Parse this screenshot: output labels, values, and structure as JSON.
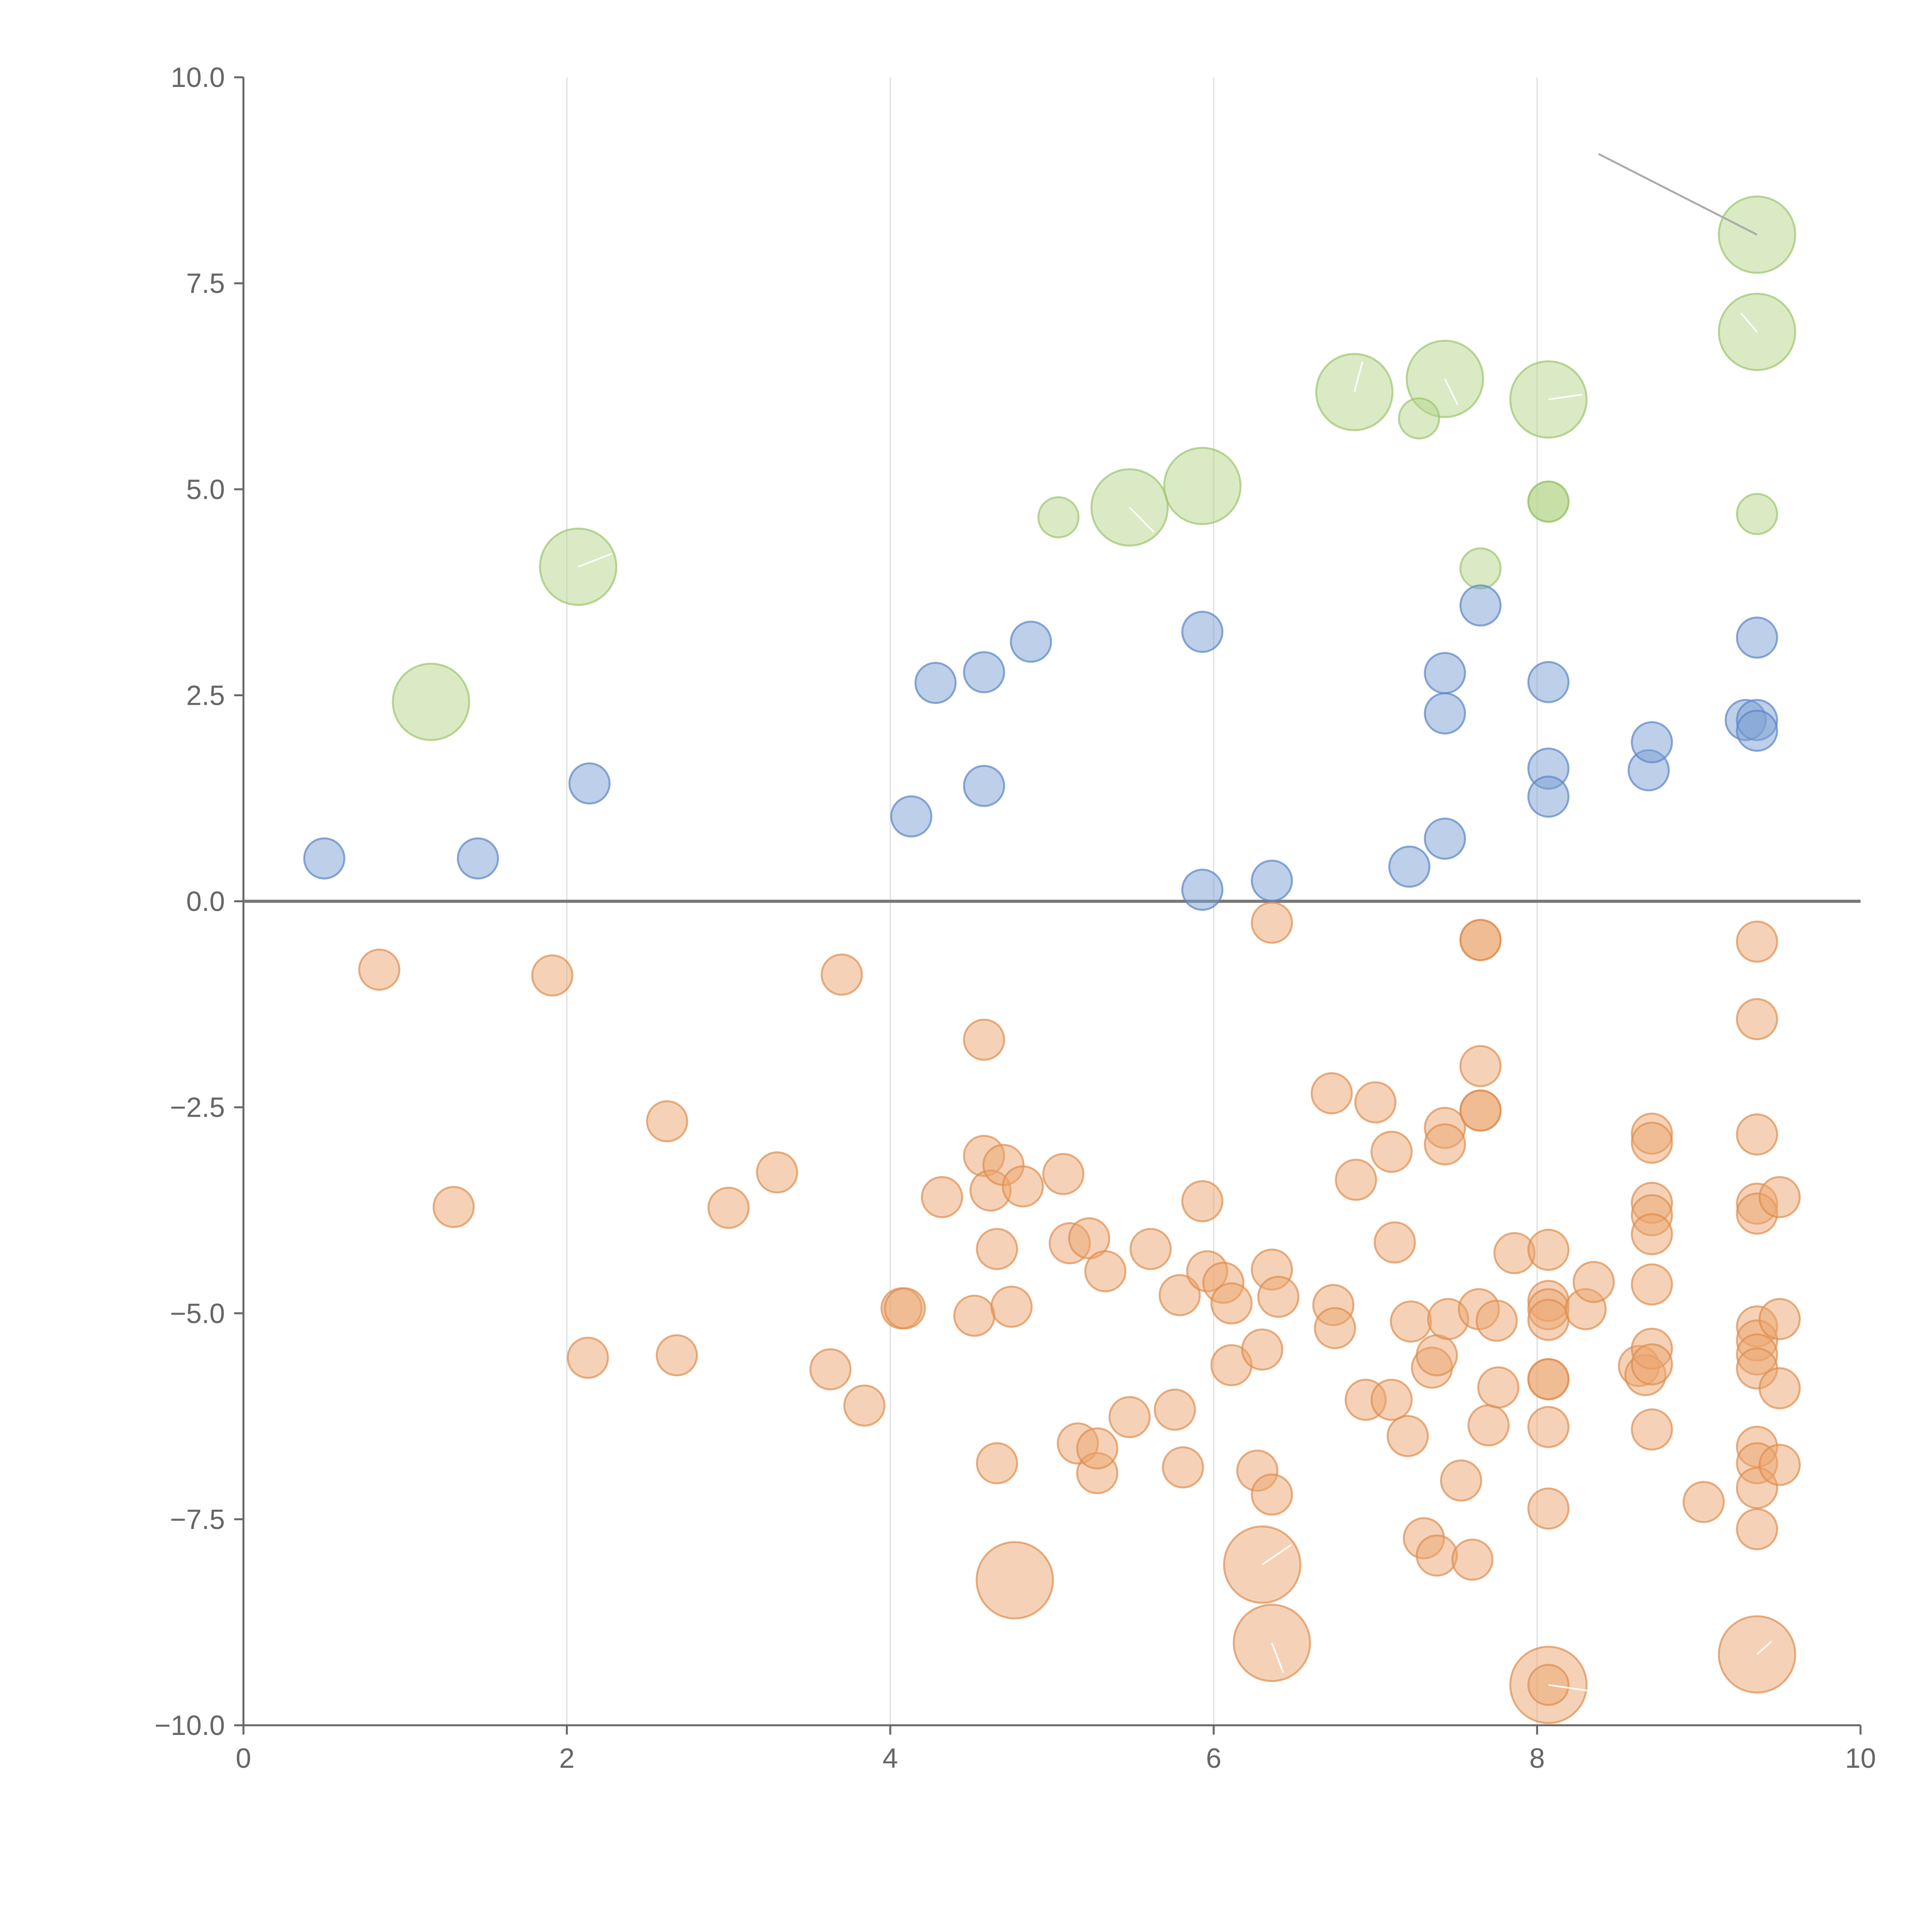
{
  "chart_data": {
    "type": "scatter",
    "title": "",
    "xlabel": "",
    "ylabel": "",
    "xlim": [
      0,
      10
    ],
    "ylim": [
      -10,
      10
    ],
    "x_ticks": [
      "0",
      "2",
      "4",
      "6",
      "8",
      "10"
    ],
    "x_tick_values": [
      0,
      2,
      4,
      6,
      8,
      10
    ],
    "y_ticks": [
      "10.0",
      "7.5",
      "5.0",
      "2.5",
      "0.0",
      "−2.5",
      "−5.0",
      "−7.5",
      "−10.0"
    ],
    "y_tick_values": [
      10,
      7.5,
      5,
      2.5,
      0,
      -2.5,
      -5,
      -7.5,
      -10
    ],
    "grid": "vertical",
    "reference_line_y": 0,
    "size_note": "size = relative bubble size (small=1)",
    "series": [
      {
        "name": "green",
        "color": "#b5d68c",
        "stroke": "#9cc46c",
        "points": [
          [
            1.16,
            2.42,
            1.9
          ],
          [
            2.07,
            4.06,
            1.9
          ],
          [
            5.04,
            4.66,
            1
          ],
          [
            5.48,
            4.78,
            1.9
          ],
          [
            5.93,
            5.04,
            1.9
          ],
          [
            6.87,
            6.18,
            1.9
          ],
          [
            7.27,
            5.86,
            1
          ],
          [
            7.43,
            6.34,
            1.9
          ],
          [
            7.65,
            4.04,
            1
          ],
          [
            8.07,
            6.09,
            1.9
          ],
          [
            8.07,
            4.85,
            1
          ],
          [
            8.07,
            4.85,
            1
          ],
          [
            9.36,
            8.09,
            1.9
          ],
          [
            9.36,
            6.91,
            1.9
          ],
          [
            9.36,
            4.7,
            1
          ]
        ]
      },
      {
        "name": "blue",
        "color": "#7b9fd4",
        "stroke": "#5a84c4",
        "points": [
          [
            0.5,
            0.52,
            1
          ],
          [
            1.45,
            0.52,
            1
          ],
          [
            2.14,
            1.43,
            1
          ],
          [
            4.13,
            1.03,
            1
          ],
          [
            4.28,
            2.65,
            1
          ],
          [
            4.58,
            2.78,
            1
          ],
          [
            4.58,
            1.4,
            1
          ],
          [
            4.87,
            3.15,
            1
          ],
          [
            5.93,
            3.27,
            1
          ],
          [
            5.93,
            0.14,
            1
          ],
          [
            6.36,
            0.25,
            1
          ],
          [
            7.21,
            0.42,
            1
          ],
          [
            7.43,
            2.77,
            1
          ],
          [
            7.43,
            2.28,
            1
          ],
          [
            7.43,
            0.76,
            1
          ],
          [
            7.65,
            3.59,
            1
          ],
          [
            8.07,
            2.66,
            1
          ],
          [
            8.07,
            1.61,
            1
          ],
          [
            8.07,
            1.27,
            1
          ],
          [
            8.69,
            1.59,
            1
          ],
          [
            8.71,
            1.93,
            1
          ],
          [
            9.29,
            2.2,
            1
          ],
          [
            9.36,
            3.2,
            1
          ],
          [
            9.36,
            2.2,
            1
          ],
          [
            9.36,
            2.07,
            1
          ]
        ]
      },
      {
        "name": "orange",
        "color": "#eba66f",
        "stroke": "#de8d4f",
        "points": [
          [
            0.84,
            -0.83,
            1
          ],
          [
            1.3,
            -3.71,
            1
          ],
          [
            1.91,
            -0.9,
            1
          ],
          [
            2.13,
            -5.54,
            1
          ],
          [
            2.62,
            -2.67,
            1
          ],
          [
            2.68,
            -5.51,
            1
          ],
          [
            3.0,
            -3.72,
            1
          ],
          [
            3.3,
            -3.29,
            1
          ],
          [
            3.63,
            -5.68,
            1
          ],
          [
            3.7,
            -0.89,
            1
          ],
          [
            3.84,
            -6.12,
            1
          ],
          [
            4.07,
            -4.94,
            1
          ],
          [
            4.09,
            -4.94,
            1
          ],
          [
            4.32,
            -3.59,
            1
          ],
          [
            4.52,
            -5.03,
            1
          ],
          [
            4.58,
            -1.68,
            1
          ],
          [
            4.58,
            -3.09,
            1
          ],
          [
            4.62,
            -3.51,
            1
          ],
          [
            4.66,
            -4.22,
            1
          ],
          [
            4.66,
            -6.82,
            1
          ],
          [
            4.7,
            -3.2,
            1
          ],
          [
            4.75,
            -4.92,
            1
          ],
          [
            4.77,
            -8.24,
            1.9
          ],
          [
            4.82,
            -3.46,
            1
          ],
          [
            5.07,
            -3.31,
            1
          ],
          [
            5.11,
            -4.15,
            1
          ],
          [
            5.16,
            -6.58,
            1
          ],
          [
            5.23,
            -4.09,
            1
          ],
          [
            5.28,
            -6.94,
            1
          ],
          [
            5.28,
            -6.64,
            1
          ],
          [
            5.33,
            -4.49,
            1
          ],
          [
            5.48,
            -6.26,
            1
          ],
          [
            5.61,
            -4.22,
            1
          ],
          [
            5.76,
            -6.17,
            1
          ],
          [
            5.79,
            -4.78,
            1
          ],
          [
            5.81,
            -6.87,
            1
          ],
          [
            5.93,
            -3.64,
            1
          ],
          [
            5.96,
            -4.49,
            1
          ],
          [
            6.06,
            -4.63,
            1
          ],
          [
            6.11,
            -4.88,
            1
          ],
          [
            6.11,
            -5.63,
            1
          ],
          [
            6.27,
            -6.91,
            1
          ],
          [
            6.3,
            -5.44,
            1
          ],
          [
            6.3,
            -8.05,
            1.9
          ],
          [
            6.36,
            -0.26,
            1
          ],
          [
            6.36,
            -4.47,
            1
          ],
          [
            6.36,
            -7.2,
            1
          ],
          [
            6.36,
            -9.0,
            1.9
          ],
          [
            6.4,
            -4.8,
            1
          ],
          [
            6.73,
            -2.33,
            1
          ],
          [
            6.74,
            -4.9,
            1
          ],
          [
            6.75,
            -5.18,
            1
          ],
          [
            6.88,
            -3.38,
            1
          ],
          [
            6.94,
            -6.05,
            1
          ],
          [
            7.0,
            -2.44,
            1
          ],
          [
            7.1,
            -3.04,
            1
          ],
          [
            7.1,
            -6.05,
            1
          ],
          [
            7.12,
            -4.14,
            1
          ],
          [
            7.2,
            -6.49,
            1
          ],
          [
            7.22,
            -5.1,
            1
          ],
          [
            7.3,
            -7.73,
            1
          ],
          [
            7.35,
            -5.66,
            1
          ],
          [
            7.38,
            -7.94,
            1
          ],
          [
            7.38,
            -5.51,
            1
          ],
          [
            7.43,
            -2.75,
            1
          ],
          [
            7.43,
            -2.95,
            1
          ],
          [
            7.45,
            -5.07,
            1
          ],
          [
            7.53,
            -7.03,
            1
          ],
          [
            7.6,
            -7.99,
            1
          ],
          [
            7.65,
            -0.47,
            1
          ],
          [
            7.65,
            -0.47,
            1
          ],
          [
            7.65,
            -2.0,
            1
          ],
          [
            7.65,
            -2.54,
            1
          ],
          [
            7.65,
            -2.54,
            1
          ],
          [
            7.64,
            -4.95,
            1
          ],
          [
            7.7,
            -6.36,
            1
          ],
          [
            7.75,
            -5.09,
            1
          ],
          [
            7.76,
            -5.9,
            1
          ],
          [
            7.86,
            -4.27,
            1
          ],
          [
            8.07,
            -4.23,
            1
          ],
          [
            8.07,
            -4.85,
            1
          ],
          [
            8.07,
            -4.95,
            1
          ],
          [
            8.07,
            -5.08,
            1
          ],
          [
            8.07,
            -5.8,
            1
          ],
          [
            8.07,
            -5.8,
            1
          ],
          [
            8.07,
            -6.38,
            1
          ],
          [
            8.07,
            -7.37,
            1
          ],
          [
            8.07,
            -9.51,
            1.9
          ],
          [
            8.07,
            -9.51,
            1
          ],
          [
            8.3,
            -4.95,
            1
          ],
          [
            8.35,
            -4.62,
            1
          ],
          [
            8.63,
            -5.64,
            1
          ],
          [
            8.67,
            -5.75,
            1
          ],
          [
            8.71,
            -2.82,
            1
          ],
          [
            8.71,
            -2.93,
            1
          ],
          [
            8.71,
            -3.66,
            1
          ],
          [
            8.71,
            -3.81,
            1
          ],
          [
            8.71,
            -4.04,
            1
          ],
          [
            8.71,
            -4.65,
            1
          ],
          [
            8.71,
            -5.43,
            1
          ],
          [
            8.71,
            -5.62,
            1
          ],
          [
            8.71,
            -6.41,
            1
          ],
          [
            9.03,
            -7.29,
            1
          ],
          [
            9.36,
            -0.49,
            1
          ],
          [
            9.36,
            -1.43,
            1
          ],
          [
            9.36,
            -2.83,
            1
          ],
          [
            9.36,
            -3.67,
            1
          ],
          [
            9.36,
            -3.79,
            1
          ],
          [
            9.36,
            -5.16,
            1
          ],
          [
            9.36,
            -5.33,
            1
          ],
          [
            9.36,
            -5.5,
            1
          ],
          [
            9.36,
            -5.67,
            1
          ],
          [
            9.36,
            -6.62,
            1
          ],
          [
            9.36,
            -6.82,
            1
          ],
          [
            9.36,
            -7.12,
            1
          ],
          [
            9.36,
            -7.62,
            1
          ],
          [
            9.36,
            -9.14,
            1.9
          ],
          [
            9.5,
            -3.59,
            1
          ],
          [
            9.5,
            -5.07,
            1
          ],
          [
            9.5,
            -5.91,
            1
          ],
          [
            9.5,
            -6.84,
            1
          ]
        ]
      }
    ],
    "annotations": [
      {
        "text": "",
        "color": "#aaaaaa",
        "from": [
          9.36,
          8.09
        ],
        "to": [
          8.38,
          9.07
        ]
      },
      {
        "text": "",
        "color": "#ffffff",
        "from": [
          2.07,
          4.06
        ],
        "to": [
          2.28,
          4.22
        ]
      },
      {
        "text": "",
        "color": "#ffffff",
        "from": [
          5.48,
          4.78
        ],
        "to": [
          5.63,
          4.48
        ]
      },
      {
        "text": "",
        "color": "#ffffff",
        "from": [
          6.87,
          6.18
        ],
        "to": [
          6.92,
          6.55
        ]
      },
      {
        "text": "",
        "color": "#ffffff",
        "from": [
          7.43,
          6.34
        ],
        "to": [
          7.51,
          6.02
        ]
      },
      {
        "text": "",
        "color": "#ffffff",
        "from": [
          8.07,
          6.09
        ],
        "to": [
          8.28,
          6.15
        ]
      },
      {
        "text": "",
        "color": "#ffffff",
        "from": [
          9.36,
          6.91
        ],
        "to": [
          9.26,
          7.14
        ]
      },
      {
        "text": "",
        "color": "#ffffff",
        "from": [
          6.3,
          -8.05
        ],
        "to": [
          6.48,
          -7.81
        ]
      },
      {
        "text": "",
        "color": "#ffffff",
        "from": [
          6.36,
          -9.0
        ],
        "to": [
          6.43,
          -9.36
        ]
      },
      {
        "text": "",
        "color": "#ffffff",
        "from": [
          8.07,
          -9.51
        ],
        "to": [
          8.35,
          -9.59
        ]
      },
      {
        "text": "",
        "color": "#ffffff",
        "from": [
          9.36,
          -9.14
        ],
        "to": [
          9.45,
          -8.98
        ]
      }
    ]
  }
}
